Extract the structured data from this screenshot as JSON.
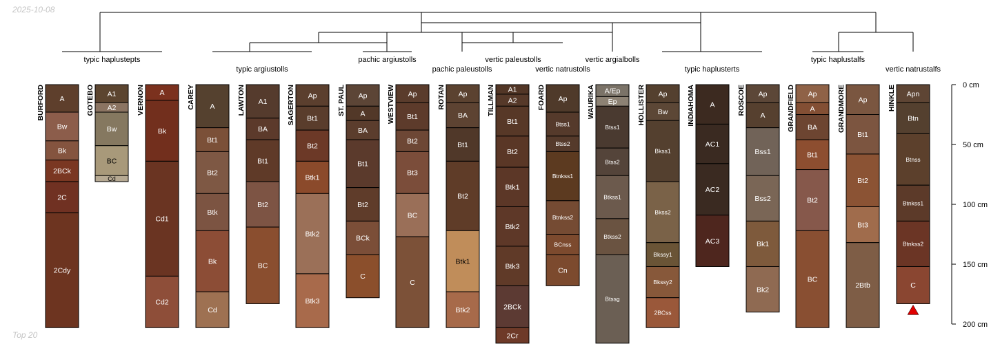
{
  "date": "2025-10-08",
  "footer": "Top 20",
  "depth_axis": {
    "ticks": [
      {
        "depth": 0,
        "label": "0 cm"
      },
      {
        "depth": 50,
        "label": "50 cm"
      },
      {
        "depth": 100,
        "label": "100 cm"
      },
      {
        "depth": 150,
        "label": "150 cm"
      },
      {
        "depth": 200,
        "label": "200 cm"
      }
    ]
  },
  "profiles": [
    {
      "name": "BURFORD",
      "horizons": [
        {
          "label": "A",
          "top": 0,
          "bottom": 23,
          "color": "#5e3f2c"
        },
        {
          "label": "Bw",
          "top": 23,
          "bottom": 47,
          "color": "#8c5d4b"
        },
        {
          "label": "Bk",
          "top": 47,
          "bottom": 63,
          "color": "#84543f"
        },
        {
          "label": "2BCk",
          "top": 63,
          "bottom": 81,
          "color": "#7a3722"
        },
        {
          "label": "2C",
          "top": 81,
          "bottom": 107,
          "color": "#703122"
        },
        {
          "label": "2Cdy",
          "top": 107,
          "bottom": 203,
          "color": "#6d3420"
        }
      ]
    },
    {
      "name": "GOTEBO",
      "horizons": [
        {
          "label": "A1",
          "top": 0,
          "bottom": 15,
          "color": "#5c4530"
        },
        {
          "label": "A2",
          "top": 15,
          "bottom": 23,
          "color": "#8b7462"
        },
        {
          "label": "Bw",
          "top": 23,
          "bottom": 51,
          "color": "#857860"
        },
        {
          "label": "BC",
          "top": 51,
          "bottom": 76,
          "color": "#a8997a"
        },
        {
          "label": "Cd",
          "top": 76,
          "bottom": 81,
          "color": "#b6a992"
        }
      ]
    },
    {
      "name": "VERNON",
      "horizons": [
        {
          "label": "A",
          "top": 0,
          "bottom": 13,
          "color": "#7b311e"
        },
        {
          "label": "Bk",
          "top": 13,
          "bottom": 64,
          "color": "#722f1d"
        },
        {
          "label": "Cd1",
          "top": 64,
          "bottom": 160,
          "color": "#6a3422"
        },
        {
          "label": "Cd2",
          "top": 160,
          "bottom": 203,
          "color": "#8e4e39"
        }
      ]
    },
    {
      "name": "CAREY",
      "horizons": [
        {
          "label": "A",
          "top": 0,
          "bottom": 36,
          "color": "#55412f"
        },
        {
          "label": "Bt1",
          "top": 36,
          "bottom": 56,
          "color": "#7b5038"
        },
        {
          "label": "Bt2",
          "top": 56,
          "bottom": 91,
          "color": "#7e5844"
        },
        {
          "label": "Btk",
          "top": 91,
          "bottom": 122,
          "color": "#7c5442"
        },
        {
          "label": "Bk",
          "top": 122,
          "bottom": 173,
          "color": "#8c4d36"
        },
        {
          "label": "Cd",
          "top": 173,
          "bottom": 203,
          "color": "#9e7152"
        }
      ]
    },
    {
      "name": "LAWTON",
      "horizons": [
        {
          "label": "A1",
          "top": 0,
          "bottom": 28,
          "color": "#553b2d"
        },
        {
          "label": "BA",
          "top": 28,
          "bottom": 46,
          "color": "#5c3a2b"
        },
        {
          "label": "Bt1",
          "top": 46,
          "bottom": 81,
          "color": "#5f3a28"
        },
        {
          "label": "Bt2",
          "top": 81,
          "bottom": 119,
          "color": "#7d5444"
        },
        {
          "label": "BC",
          "top": 119,
          "bottom": 183,
          "color": "#8a4e2f"
        }
      ]
    },
    {
      "name": "SAGERTON",
      "horizons": [
        {
          "label": "Ap",
          "top": 0,
          "bottom": 18,
          "color": "#5b3f2e"
        },
        {
          "label": "Bt1",
          "top": 18,
          "bottom": 38,
          "color": "#5a3d2c"
        },
        {
          "label": "Bt2",
          "top": 38,
          "bottom": 64,
          "color": "#6c3927"
        },
        {
          "label": "Btk1",
          "top": 64,
          "bottom": 91,
          "color": "#8b4a2b"
        },
        {
          "label": "Btk2",
          "top": 91,
          "bottom": 158,
          "color": "#9b7058"
        },
        {
          "label": "Btk3",
          "top": 158,
          "bottom": 203,
          "color": "#a86a4b"
        }
      ]
    },
    {
      "name": "ST. PAUL",
      "horizons": [
        {
          "label": "Ap",
          "top": 0,
          "bottom": 18,
          "color": "#5c4536"
        },
        {
          "label": "A",
          "top": 18,
          "bottom": 30,
          "color": "#523828"
        },
        {
          "label": "BA",
          "top": 30,
          "bottom": 46,
          "color": "#5b3d2d"
        },
        {
          "label": "Bt1",
          "top": 46,
          "bottom": 86,
          "color": "#5b3a2c"
        },
        {
          "label": "Bt2",
          "top": 86,
          "bottom": 114,
          "color": "#5f3c2a"
        },
        {
          "label": "BCk",
          "top": 114,
          "bottom": 142,
          "color": "#7b4e38"
        },
        {
          "label": "C",
          "top": 142,
          "bottom": 178,
          "color": "#8b4f2c"
        }
      ]
    },
    {
      "name": "WESTVIEW",
      "horizons": [
        {
          "label": "Ap",
          "top": 0,
          "bottom": 15,
          "color": "#5a3c2c"
        },
        {
          "label": "Bt1",
          "top": 15,
          "bottom": 38,
          "color": "#5d3b2b"
        },
        {
          "label": "Bt2",
          "top": 38,
          "bottom": 56,
          "color": "#6d4735"
        },
        {
          "label": "Bt3",
          "top": 56,
          "bottom": 91,
          "color": "#7b4d3a"
        },
        {
          "label": "BC",
          "top": 91,
          "bottom": 127,
          "color": "#9a6f58"
        },
        {
          "label": "C",
          "top": 127,
          "bottom": 203,
          "color": "#7c5138"
        }
      ]
    },
    {
      "name": "ROTAN",
      "horizons": [
        {
          "label": "Ap",
          "top": 0,
          "bottom": 15,
          "color": "#5b4230"
        },
        {
          "label": "BA",
          "top": 15,
          "bottom": 36,
          "color": "#5d4332"
        },
        {
          "label": "Bt1",
          "top": 36,
          "bottom": 64,
          "color": "#503829"
        },
        {
          "label": "Bt2",
          "top": 64,
          "bottom": 122,
          "color": "#5f3c28"
        },
        {
          "label": "Btk1",
          "top": 122,
          "bottom": 173,
          "color": "#c08d5a"
        },
        {
          "label": "Btk2",
          "top": 173,
          "bottom": 203,
          "color": "#a76a4a"
        }
      ]
    },
    {
      "name": "TILLMAN",
      "horizons": [
        {
          "label": "A1",
          "top": 0,
          "bottom": 8,
          "color": "#523626"
        },
        {
          "label": "A2",
          "top": 8,
          "bottom": 18,
          "color": "#563929"
        },
        {
          "label": "Bt1",
          "top": 18,
          "bottom": 43,
          "color": "#573827"
        },
        {
          "label": "Bt2",
          "top": 43,
          "bottom": 69,
          "color": "#5a3726"
        },
        {
          "label": "Btk1",
          "top": 69,
          "bottom": 102,
          "color": "#5c3727"
        },
        {
          "label": "Btk2",
          "top": 102,
          "bottom": 135,
          "color": "#5e3828"
        },
        {
          "label": "Btk3",
          "top": 135,
          "bottom": 168,
          "color": "#603a28"
        },
        {
          "label": "2BCk",
          "top": 168,
          "bottom": 203,
          "color": "#5c3a33"
        },
        {
          "label": "2Cr",
          "top": 203,
          "bottom": 216,
          "color": "#6e3a28"
        }
      ]
    },
    {
      "name": "FOARD",
      "horizons": [
        {
          "label": "Ap",
          "top": 0,
          "bottom": 23,
          "color": "#4f3a2a"
        },
        {
          "label": "Btss1",
          "top": 23,
          "bottom": 43,
          "color": "#553a2b"
        },
        {
          "label": "Btss2",
          "top": 43,
          "bottom": 56,
          "color": "#553a2b"
        },
        {
          "label": "Btnkss1",
          "top": 56,
          "bottom": 97,
          "color": "#5c3a20"
        },
        {
          "label": "Btnkss2",
          "top": 97,
          "bottom": 125,
          "color": "#754b33"
        },
        {
          "label": "BCnss",
          "top": 125,
          "bottom": 142,
          "color": "#7c4a2e"
        },
        {
          "label": "Cn",
          "top": 142,
          "bottom": 168,
          "color": "#7c4a2e"
        }
      ]
    },
    {
      "name": "WAURIKA",
      "horizons": [
        {
          "label": "A/Ep",
          "top": 0,
          "bottom": 10,
          "color": "#7b7368"
        },
        {
          "label": "Ep",
          "top": 10,
          "bottom": 18,
          "color": "#8d8274"
        },
        {
          "label": "Btss1",
          "top": 18,
          "bottom": 53,
          "color": "#4a3a30"
        },
        {
          "label": "Btss2",
          "top": 53,
          "bottom": 76,
          "color": "#54443a"
        },
        {
          "label": "Btkss1",
          "top": 76,
          "bottom": 112,
          "color": "#6c5a4d"
        },
        {
          "label": "Btkss2",
          "top": 112,
          "bottom": 142,
          "color": "#6a5341"
        },
        {
          "label": "Btssg",
          "top": 142,
          "bottom": 216,
          "color": "#6b5f54"
        }
      ]
    },
    {
      "name": "HOLLISTER",
      "horizons": [
        {
          "label": "Ap",
          "top": 0,
          "bottom": 15,
          "color": "#54402f"
        },
        {
          "label": "Bw",
          "top": 15,
          "bottom": 30,
          "color": "#5c4736"
        },
        {
          "label": "Bkss1",
          "top": 30,
          "bottom": 81,
          "color": "#54402f"
        },
        {
          "label": "Bkss2",
          "top": 81,
          "bottom": 132,
          "color": "#7a6248"
        },
        {
          "label": "Bkssy1",
          "top": 132,
          "bottom": 152,
          "color": "#6a5436"
        },
        {
          "label": "Bkssy2",
          "top": 152,
          "bottom": 178,
          "color": "#87583a"
        },
        {
          "label": "2BCss",
          "top": 178,
          "bottom": 203,
          "color": "#9a583a"
        }
      ]
    },
    {
      "name": "INDIAHOMA",
      "horizons": [
        {
          "label": "A",
          "top": 0,
          "bottom": 33,
          "color": "#3c2a20"
        },
        {
          "label": "AC1",
          "top": 33,
          "bottom": 66,
          "color": "#3a2a21"
        },
        {
          "label": "AC2",
          "top": 66,
          "bottom": 109,
          "color": "#3a2a21"
        },
        {
          "label": "AC3",
          "top": 109,
          "bottom": 152,
          "color": "#4e261e"
        }
      ]
    },
    {
      "name": "ROSCOE",
      "horizons": [
        {
          "label": "Ap",
          "top": 0,
          "bottom": 15,
          "color": "#5c4738"
        },
        {
          "label": "A",
          "top": 15,
          "bottom": 36,
          "color": "#56402f"
        },
        {
          "label": "Bss1",
          "top": 36,
          "bottom": 76,
          "color": "#716358"
        },
        {
          "label": "Bss2",
          "top": 76,
          "bottom": 114,
          "color": "#7a6656"
        },
        {
          "label": "Bk1",
          "top": 114,
          "bottom": 152,
          "color": "#7e5a3c"
        },
        {
          "label": "Bk2",
          "top": 152,
          "bottom": 190,
          "color": "#8f6a52"
        }
      ]
    },
    {
      "name": "GRANDFIELD",
      "horizons": [
        {
          "label": "Ap",
          "top": 0,
          "bottom": 15,
          "color": "#8f6247"
        },
        {
          "label": "A",
          "top": 15,
          "bottom": 25,
          "color": "#834f34"
        },
        {
          "label": "BA",
          "top": 25,
          "bottom": 46,
          "color": "#6d4531"
        },
        {
          "label": "Bt1",
          "top": 46,
          "bottom": 71,
          "color": "#8d4e30"
        },
        {
          "label": "Bt2",
          "top": 71,
          "bottom": 122,
          "color": "#86584b"
        },
        {
          "label": "BC",
          "top": 122,
          "bottom": 203,
          "color": "#894f32"
        }
      ]
    },
    {
      "name": "GRANDMORE",
      "horizons": [
        {
          "label": "Ap",
          "top": 0,
          "bottom": 25,
          "color": "#7a5640"
        },
        {
          "label": "Bt1",
          "top": 25,
          "bottom": 58,
          "color": "#7c5540"
        },
        {
          "label": "Bt2",
          "top": 58,
          "bottom": 102,
          "color": "#8b5334"
        },
        {
          "label": "Bt3",
          "top": 102,
          "bottom": 132,
          "color": "#a06c4c"
        },
        {
          "label": "2Btb",
          "top": 132,
          "bottom": 203,
          "color": "#7e5d46"
        }
      ]
    },
    {
      "name": "HINKLE",
      "horizons": [
        {
          "label": "Apn",
          "top": 0,
          "bottom": 15,
          "color": "#5e4534"
        },
        {
          "label": "Btn",
          "top": 15,
          "bottom": 41,
          "color": "#54402f"
        },
        {
          "label": "Btnss",
          "top": 41,
          "bottom": 84,
          "color": "#5c402c"
        },
        {
          "label": "Btnkss1",
          "top": 84,
          "bottom": 114,
          "color": "#5c3a29"
        },
        {
          "label": "Btnkss2",
          "top": 114,
          "bottom": 152,
          "color": "#6b3525"
        },
        {
          "label": "C",
          "top": 152,
          "bottom": 183,
          "color": "#8a4631"
        }
      ]
    }
  ],
  "taxa": [
    {
      "label": "typic haplustepts"
    },
    {
      "label": "typic argiustolls"
    },
    {
      "label": "pachic argiustolls"
    },
    {
      "label": "pachic paleustolls"
    },
    {
      "label": "vertic paleustolls"
    },
    {
      "label": "vertic natrustolls"
    },
    {
      "label": "vertic argialbolls"
    },
    {
      "label": "typic haplusterts"
    },
    {
      "label": "typic haplustalfs"
    },
    {
      "label": "vertic natrustalfs"
    }
  ],
  "colors": {
    "dendrogram": "#000000",
    "axis": "#000000",
    "horizon_border": "#000000",
    "marker": "#e00000",
    "light_text": "#ffffff",
    "dark_text": "#000000"
  }
}
